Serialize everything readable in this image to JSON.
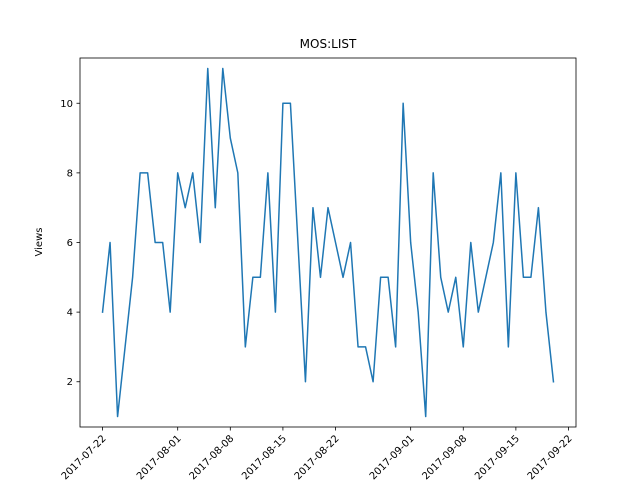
{
  "chart_data": {
    "type": "line",
    "title": "MOS:LIST",
    "xlabel": "",
    "ylabel": "Views",
    "x_type": "date",
    "xlim": [
      "2017-07-19",
      "2017-09-23"
    ],
    "ylim": [
      0.7,
      11.3
    ],
    "x_ticks": [
      "2017-07-22",
      "2017-08-01",
      "2017-08-08",
      "2017-08-15",
      "2017-08-22",
      "2017-09-01",
      "2017-09-08",
      "2017-09-15",
      "2017-09-22"
    ],
    "y_ticks": [
      2,
      4,
      6,
      8,
      10
    ],
    "grid": false,
    "legend": "none",
    "series": [
      {
        "color": "#1f77b4",
        "x": [
          "2017-07-22",
          "2017-07-23",
          "2017-07-24",
          "2017-07-25",
          "2017-07-26",
          "2017-07-27",
          "2017-07-28",
          "2017-07-29",
          "2017-07-30",
          "2017-07-31",
          "2017-08-01",
          "2017-08-02",
          "2017-08-03",
          "2017-08-04",
          "2017-08-05",
          "2017-08-06",
          "2017-08-07",
          "2017-08-08",
          "2017-08-09",
          "2017-08-10",
          "2017-08-11",
          "2017-08-12",
          "2017-08-13",
          "2017-08-14",
          "2017-08-15",
          "2017-08-16",
          "2017-08-17",
          "2017-08-18",
          "2017-08-19",
          "2017-08-20",
          "2017-08-21",
          "2017-08-22",
          "2017-08-23",
          "2017-08-24",
          "2017-08-25",
          "2017-08-26",
          "2017-08-27",
          "2017-08-28",
          "2017-08-29",
          "2017-08-30",
          "2017-08-31",
          "2017-09-01",
          "2017-09-02",
          "2017-09-03",
          "2017-09-04",
          "2017-09-05",
          "2017-09-06",
          "2017-09-07",
          "2017-09-08",
          "2017-09-09",
          "2017-09-10",
          "2017-09-11",
          "2017-09-12",
          "2017-09-13",
          "2017-09-14",
          "2017-09-15",
          "2017-09-16",
          "2017-09-17",
          "2017-09-18",
          "2017-09-19",
          "2017-09-20"
        ],
        "y": [
          4,
          6,
          1,
          3,
          5,
          8,
          8,
          6,
          6,
          4,
          8,
          7,
          8,
          6,
          11,
          7,
          11,
          9,
          8,
          3,
          5,
          5,
          8,
          4,
          10,
          10,
          6,
          2,
          7,
          5,
          7,
          6,
          5,
          6,
          3,
          3,
          2,
          5,
          5,
          3,
          10,
          6,
          4,
          1,
          8,
          5,
          4,
          5,
          3,
          6,
          4,
          5,
          6,
          8,
          3,
          8,
          5,
          5,
          7,
          4,
          2
        ]
      }
    ]
  }
}
